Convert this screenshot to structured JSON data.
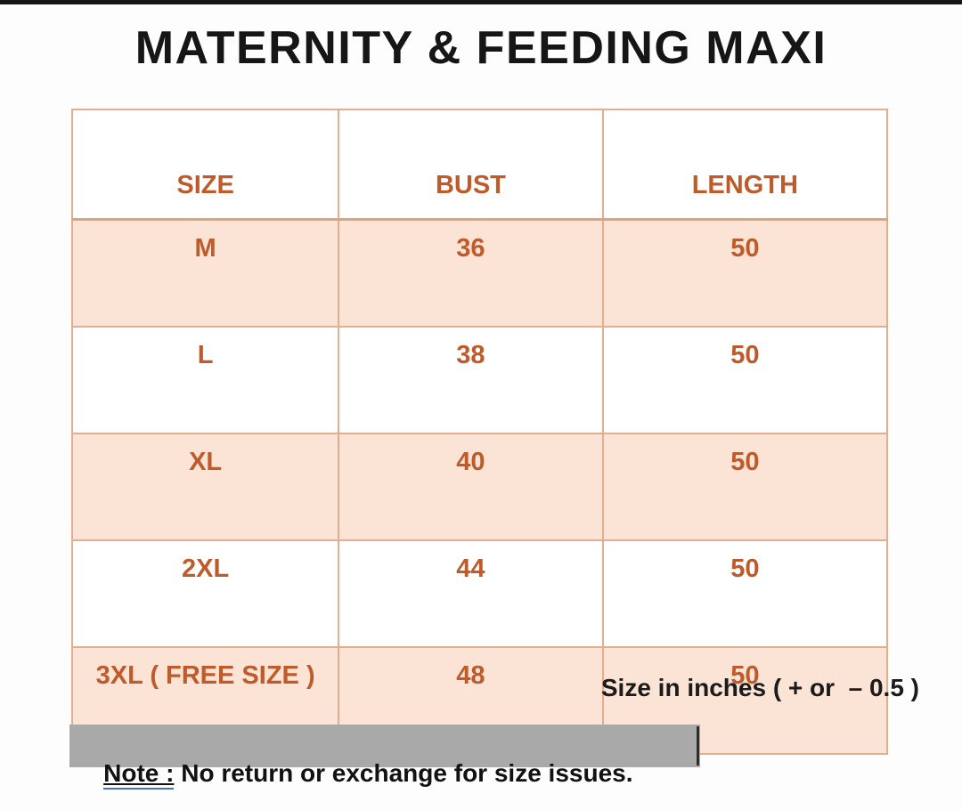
{
  "title": "MATERNITY & FEEDING MAXI",
  "table": {
    "columns": [
      "SIZE",
      "BUST",
      "LENGTH"
    ],
    "rows": [
      {
        "size": "M",
        "bust": "36",
        "length": "50"
      },
      {
        "size": "L",
        "bust": "38",
        "length": "50"
      },
      {
        "size": "XL",
        "bust": "40",
        "length": "50"
      },
      {
        "size": "2XL",
        "bust": "44",
        "length": "50"
      },
      {
        "size": "3XL ( FREE SIZE )",
        "bust": "48",
        "length": "50"
      }
    ]
  },
  "units_note": "Size in inches ( + or  – 0.5 )",
  "note": {
    "label": "Note :",
    "text": " No return or exchange for size issues."
  },
  "colors": {
    "row_fill_peach": "#fbe3d5",
    "table_border": "#e2ae8e",
    "accent_orange_text": "#bf5b2b",
    "note_highlight_gray": "#a9a9a9",
    "note_underline_blue": "#4a6fbd",
    "title_black": "#161616",
    "top_band_black": "#161616"
  }
}
